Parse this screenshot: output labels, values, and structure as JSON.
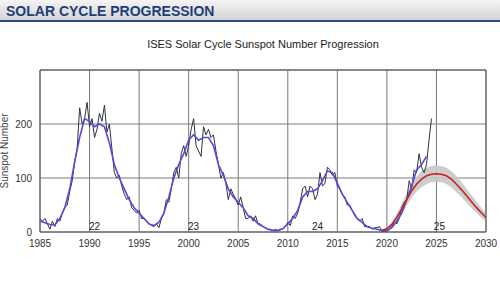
{
  "header": "SOLAR CYCLE PROGRESSION",
  "chart_data": {
    "type": "line",
    "title": "ISES Solar Cycle Sunspot Number Progression",
    "y_label": "Sunspot Number",
    "xlim": [
      1985,
      2030
    ],
    "xticks": [
      1985,
      1990,
      1995,
      2000,
      2005,
      2010,
      2015,
      2020,
      2025,
      2030
    ],
    "ylim": [
      0,
      300
    ],
    "yticks": [
      0,
      100,
      200
    ],
    "grid": true,
    "series": [
      {
        "color": "#2b3440",
        "x": [
          1985,
          1985.25,
          1985.5,
          1985.75,
          1986,
          1986.25,
          1986.5,
          1986.75,
          1987,
          1987.25,
          1987.5,
          1987.75,
          1988,
          1988.25,
          1988.5,
          1988.75,
          1989,
          1989.25,
          1989.5,
          1989.75,
          1990,
          1990.25,
          1990.5,
          1990.75,
          1991,
          1991.25,
          1991.5,
          1991.75,
          1992,
          1992.25,
          1992.5,
          1992.75,
          1993,
          1993.25,
          1993.5,
          1993.75,
          1994,
          1994.25,
          1994.5,
          1994.75,
          1995,
          1995.25,
          1995.5,
          1995.75,
          1996,
          1996.25,
          1996.5,
          1996.75,
          1997,
          1997.25,
          1997.5,
          1997.75,
          1998,
          1998.25,
          1998.5,
          1998.75,
          1999,
          1999.25,
          1999.5,
          1999.75,
          2000,
          2000.25,
          2000.5,
          2000.75,
          2001,
          2001.25,
          2001.5,
          2001.75,
          2002,
          2002.25,
          2002.5,
          2002.75,
          2003,
          2003.25,
          2003.5,
          2003.75,
          2004,
          2004.25,
          2004.5,
          2004.75,
          2005,
          2005.25,
          2005.5,
          2005.75,
          2006,
          2006.25,
          2006.5,
          2006.75,
          2007,
          2007.25,
          2007.5,
          2007.75,
          2008,
          2008.25,
          2008.5,
          2008.75,
          2009,
          2009.25,
          2009.5,
          2009.75,
          2010,
          2010.25,
          2010.5,
          2010.75,
          2011,
          2011.25,
          2011.5,
          2011.75,
          2012,
          2012.25,
          2012.5,
          2012.75,
          2013,
          2013.25,
          2013.5,
          2013.75,
          2014,
          2014.25,
          2014.5,
          2014.75,
          2015,
          2015.25,
          2015.5,
          2015.75,
          2016,
          2016.25,
          2016.5,
          2016.75,
          2017,
          2017.25,
          2017.5,
          2017.75,
          2018,
          2018.25,
          2018.5,
          2018.75,
          2019,
          2019.25,
          2019.5,
          2019.75,
          2020,
          2020.25,
          2020.5,
          2020.75,
          2021,
          2021.25,
          2021.5,
          2021.75,
          2022,
          2022.25,
          2022.5,
          2022.75,
          2023,
          2023.25,
          2023.5,
          2023.75,
          2024,
          2024.25,
          2024.5
        ],
        "values": [
          25,
          20,
          25,
          15,
          5,
          20,
          10,
          25,
          20,
          35,
          45,
          50,
          75,
          95,
          130,
          155,
          230,
          200,
          210,
          240,
          195,
          210,
          175,
          190,
          220,
          205,
          235,
          185,
          200,
          155,
          110,
          100,
          105,
          85,
          70,
          60,
          65,
          45,
          40,
          35,
          40,
          25,
          25,
          20,
          15,
          12,
          10,
          15,
          8,
          25,
          35,
          60,
          55,
          80,
          110,
          120,
          100,
          145,
          160,
          140,
          160,
          190,
          210,
          160,
          150,
          140,
          195,
          180,
          190,
          175,
          180,
          150,
          125,
          100,
          110,
          90,
          60,
          80,
          70,
          60,
          50,
          65,
          45,
          25,
          25,
          30,
          20,
          30,
          15,
          15,
          10,
          8,
          5,
          5,
          2,
          5,
          2,
          4,
          6,
          10,
          18,
          12,
          30,
          25,
          35,
          55,
          80,
          85,
          65,
          85,
          80,
          60,
          70,
          110,
          85,
          90,
          120,
          115,
          105,
          110,
          85,
          80,
          70,
          65,
          50,
          50,
          40,
          30,
          25,
          20,
          25,
          10,
          10,
          10,
          5,
          8,
          8,
          10,
          1,
          1,
          3,
          5,
          10,
          20,
          15,
          25,
          45,
          55,
          60,
          95,
          80,
          115,
          110,
          145,
          120,
          110,
          125,
          170,
          210
        ]
      },
      {
        "color": "#5a48d6",
        "x": [
          1985,
          1985.5,
          1986,
          1986.5,
          1987,
          1987.5,
          1988,
          1988.5,
          1989,
          1989.5,
          1990,
          1990.5,
          1991,
          1991.5,
          1992,
          1992.5,
          1993,
          1993.5,
          1994,
          1994.5,
          1995,
          1995.5,
          1996,
          1996.5,
          1997,
          1997.5,
          1998,
          1998.5,
          1999,
          1999.5,
          2000,
          2000.5,
          2001,
          2001.5,
          2002,
          2002.5,
          2003,
          2003.5,
          2004,
          2004.5,
          2005,
          2005.5,
          2006,
          2006.5,
          2007,
          2007.5,
          2008,
          2008.5,
          2009,
          2009.5,
          2010,
          2010.5,
          2011,
          2011.5,
          2012,
          2012.5,
          2013,
          2013.5,
          2014,
          2014.5,
          2015,
          2015.5,
          2016,
          2016.5,
          2017,
          2017.5,
          2018,
          2018.5,
          2019,
          2019.5,
          2020,
          2020.5,
          2021,
          2021.5,
          2022,
          2022.5,
          2023,
          2023.5,
          2024
        ],
        "values": [
          20,
          17,
          14,
          13,
          25,
          45,
          80,
          130,
          175,
          210,
          205,
          195,
          200,
          195,
          165,
          125,
          100,
          80,
          60,
          45,
          35,
          25,
          15,
          12,
          18,
          35,
          65,
          100,
          125,
          145,
          170,
          180,
          170,
          175,
          175,
          160,
          125,
          105,
          80,
          65,
          55,
          45,
          30,
          25,
          15,
          10,
          5,
          3,
          3,
          6,
          15,
          25,
          40,
          65,
          75,
          75,
          80,
          95,
          113,
          110,
          90,
          70,
          55,
          40,
          25,
          18,
          10,
          7,
          5,
          3,
          2,
          8,
          20,
          35,
          60,
          85,
          115,
          125,
          140
        ]
      },
      {
        "color": "#cc2020",
        "band_color": "#c8c8c8",
        "x": [
          2019.5,
          2020,
          2020.5,
          2021,
          2021.5,
          2022,
          2022.5,
          2023,
          2023.5,
          2024,
          2024.5,
          2025,
          2025.5,
          2026,
          2026.5,
          2027,
          2027.5,
          2028,
          2028.5,
          2029,
          2029.5,
          2030
        ],
        "values": [
          3,
          6,
          14,
          27,
          43,
          60,
          76,
          89,
          98,
          104,
          107,
          108,
          107,
          104,
          98,
          89,
          79,
          68,
          57,
          46,
          36,
          27
        ],
        "lower": [
          2,
          4,
          10,
          20,
          34,
          49,
          63,
          75,
          83,
          89,
          92,
          93,
          92,
          89,
          83,
          74,
          65,
          55,
          45,
          36,
          27,
          19
        ],
        "upper": [
          4,
          8,
          18,
          34,
          52,
          71,
          89,
          103,
          113,
          119,
          122,
          123,
          122,
          119,
          113,
          104,
          93,
          81,
          69,
          57,
          45,
          35
        ]
      }
    ],
    "annotations": [
      {
        "text": "22",
        "x": 1990.5,
        "y": 10
      },
      {
        "text": "23",
        "x": 2000.5,
        "y": 10
      },
      {
        "text": "24",
        "x": 2013,
        "y": 10
      },
      {
        "text": "25",
        "x": 2025.3,
        "y": 10
      }
    ]
  }
}
